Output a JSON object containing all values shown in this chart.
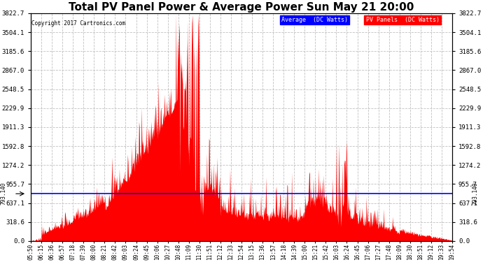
{
  "title": "Total PV Panel Power & Average Power Sun May 21 20:00",
  "copyright": "Copyright 2017 Cartronics.com",
  "average_value": 793.14,
  "y_max": 3822.7,
  "y_min": 0.0,
  "yticks": [
    0.0,
    318.6,
    637.1,
    955.7,
    1274.2,
    1592.8,
    1911.3,
    2229.9,
    2548.5,
    2867.0,
    3185.6,
    3504.1,
    3822.7
  ],
  "avg_label": "Average  (DC Watts)",
  "pv_label": "PV Panels  (DC Watts)",
  "avg_color": "#0000ff",
  "pv_color": "#ff0000",
  "bg_color": "#ffffff",
  "grid_color": "#c0c0c0",
  "title_fontsize": 11,
  "avg_line_color": "#0000ff",
  "x_labels": [
    "05:50",
    "06:15",
    "06:36",
    "06:57",
    "07:18",
    "07:39",
    "08:00",
    "08:21",
    "08:42",
    "09:03",
    "09:24",
    "09:45",
    "10:06",
    "10:27",
    "10:48",
    "11:09",
    "11:30",
    "11:51",
    "12:12",
    "12:33",
    "12:54",
    "13:15",
    "13:36",
    "13:57",
    "14:18",
    "14:39",
    "15:00",
    "15:21",
    "15:42",
    "16:03",
    "16:24",
    "16:45",
    "17:06",
    "17:27",
    "17:48",
    "18:09",
    "18:30",
    "18:51",
    "19:12",
    "19:33",
    "19:54"
  ]
}
